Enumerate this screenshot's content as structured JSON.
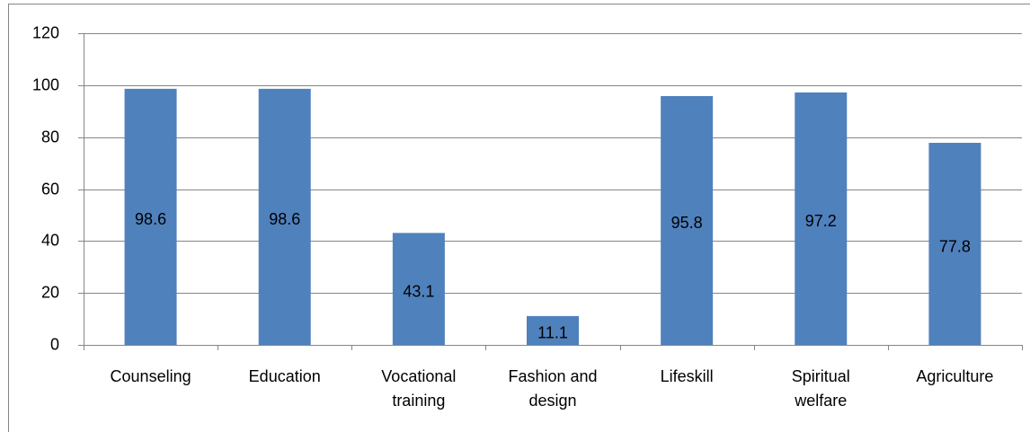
{
  "chart_data": {
    "type": "bar",
    "categories": [
      "Counseling",
      "Education",
      "Vocational training",
      "Fashion and design",
      "Lifeskill",
      "Spiritual welfare",
      "Agriculture"
    ],
    "values": [
      98.6,
      98.6,
      43.1,
      11.1,
      95.8,
      97.2,
      77.8
    ],
    "color": "#4f81bd",
    "ylim": [
      0,
      120
    ],
    "yticks": [
      0,
      20,
      40,
      60,
      80,
      100,
      120
    ],
    "grid": true
  }
}
